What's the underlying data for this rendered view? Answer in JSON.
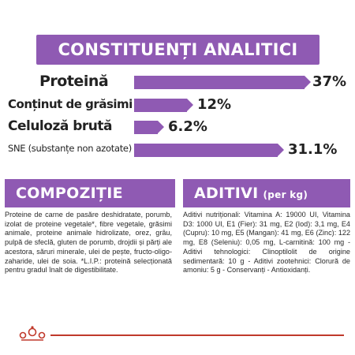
{
  "title": "CONSTITUENȚI ANALITICI",
  "analytics": [
    {
      "label": "Proteină",
      "value": "37%",
      "percent": 37
    },
    {
      "label": "Conținut de grăsimi",
      "value": "12%",
      "percent": 12
    },
    {
      "label": "Celuloză brută",
      "value": "6.2%",
      "percent": 6.2
    },
    {
      "label": "SNE (substanțe non azotate)",
      "value": "31.1%",
      "percent": 31.1
    }
  ],
  "composition": {
    "title": "COMPOZIȚIE",
    "text": "Proteine de carne de pasăre deshidratate, porumb, izolat de proteine vegetale*, fibre vegetale, grăsimi animale, proteine animale hidrolizate, orez, grâu, pulpă de sfeclă, gluten de porumb, drojdii și părți ale acestora, săruri minerale, ulei de pește, fructo-oligo-zaharide, ulei de soia. *L.I.P.: proteină selecționată pentru gradul înalt de digestibilitate."
  },
  "additives": {
    "title": "ADITIVI",
    "title_suffix": "(per kg)",
    "text": "Aditivi nutriționali: Vitamina A: 19000 UI, Vitamina D3: 1000 UI, E1 (Fier): 31 mg, E2 (Iod): 3,1 mg, E4 (Cupru): 10 mg, E5 (Mangan): 41 mg, E6 (Zinc): 122 mg, E8 (Seleniu): 0,05 mg, L-carnitină: 100 mg - Aditivi tehnologici: Clinoptilolit de origine sedimentară: 10 g - Aditivi zootehnici: Clorură de amoniu: 5 g - Conservanți - Antioxidanți."
  },
  "colors": {
    "accent": "#8f5ab3",
    "footer": "#c0392b"
  },
  "logo": "royal-canin-crown-logo"
}
